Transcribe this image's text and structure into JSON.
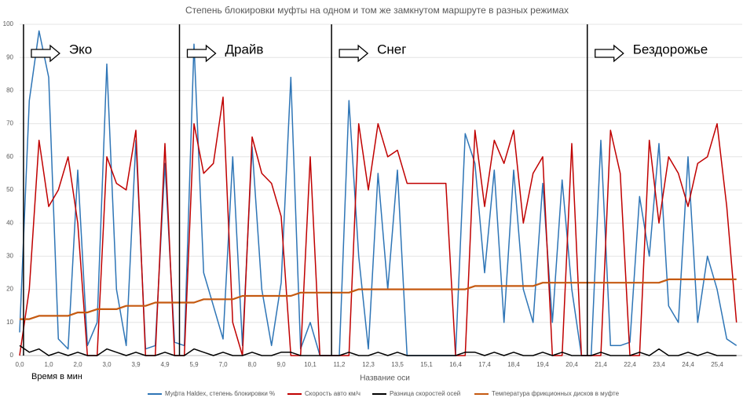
{
  "chart_data": {
    "type": "line",
    "title": "Степень блокировки муфты на одном и том же замкнутом маршруте в разных режимах",
    "x_label": "Название оси",
    "note": "Время в мин",
    "categories": [
      "0,0",
      null,
      null,
      "1,0",
      null,
      null,
      "2,0",
      null,
      null,
      "3,0",
      null,
      null,
      "3,9",
      null,
      null,
      "4,9",
      null,
      null,
      "5,9",
      null,
      null,
      "7,0",
      null,
      null,
      "8,0",
      null,
      null,
      "9,0",
      null,
      null,
      "10,1",
      null,
      null,
      "11,2",
      null,
      null,
      "12,3",
      null,
      null,
      "13,5",
      null,
      null,
      "15,1",
      null,
      null,
      "16,4",
      null,
      null,
      "17,4",
      null,
      null,
      "18,4",
      null,
      null,
      "19,4",
      null,
      null,
      "20,4",
      null,
      null,
      "21,4",
      null,
      null,
      "22,4",
      null,
      null,
      "23,4",
      null,
      null,
      "24,4",
      null,
      null,
      "25,4",
      null,
      null
    ],
    "ylim": [
      0,
      100
    ],
    "yticks": [
      0,
      10,
      20,
      30,
      40,
      50,
      60,
      70,
      80,
      90,
      100
    ],
    "grid": true,
    "regions": [
      {
        "label": "Эко",
        "x": 0.4
      },
      {
        "label": "Драйв",
        "x": 16.5
      },
      {
        "label": "Снег",
        "x": 32.2
      },
      {
        "label": "Бездорожье",
        "x": 58.6
      }
    ],
    "series": [
      {
        "name": "Муфта Haldex,  степень блокировки %",
        "color": "#2e75b6",
        "values": [
          7,
          77,
          98,
          84,
          5,
          2,
          56,
          3,
          10,
          88,
          20,
          3,
          65,
          2,
          3,
          58,
          4,
          3,
          94,
          25,
          15,
          5,
          60,
          3,
          63,
          20,
          3,
          22,
          84,
          2,
          10,
          0,
          0,
          0,
          77,
          30,
          2,
          55,
          20,
          56,
          0,
          0,
          0,
          0,
          0,
          0,
          67,
          58,
          25,
          56,
          10,
          56,
          20,
          10,
          52,
          10,
          53,
          20,
          0,
          0,
          65,
          3,
          3,
          4,
          48,
          30,
          64,
          15,
          10,
          60,
          10,
          30,
          20,
          5,
          3
        ]
      },
      {
        "name": "Скорость авто км/ч",
        "color": "#c00000",
        "values": [
          0,
          20,
          65,
          45,
          50,
          60,
          40,
          0,
          0,
          60,
          52,
          50,
          68,
          0,
          0,
          64,
          0,
          0,
          70,
          55,
          58,
          78,
          10,
          0,
          66,
          55,
          52,
          42,
          0,
          0,
          60,
          0,
          0,
          0,
          0,
          70,
          50,
          70,
          60,
          62,
          52,
          52,
          52,
          52,
          52,
          0,
          0,
          68,
          45,
          65,
          58,
          68,
          40,
          55,
          60,
          0,
          0,
          64,
          0,
          0,
          0,
          68,
          55,
          0,
          0,
          65,
          40,
          60,
          55,
          45,
          58,
          60,
          70,
          45,
          10
        ]
      },
      {
        "name": "Разница скоростей осей",
        "color": "#000000",
        "values": [
          3,
          1,
          2,
          0,
          1,
          0,
          1,
          0,
          0,
          2,
          1,
          0,
          1,
          0,
          0,
          1,
          0,
          0,
          2,
          1,
          0,
          1,
          0,
          0,
          1,
          0,
          0,
          1,
          1,
          0,
          0,
          0,
          0,
          0,
          1,
          0,
          0,
          1,
          0,
          1,
          0,
          0,
          0,
          0,
          0,
          0,
          1,
          1,
          0,
          1,
          0,
          1,
          0,
          0,
          1,
          0,
          1,
          0,
          0,
          0,
          1,
          0,
          0,
          0,
          1,
          0,
          2,
          0,
          0,
          1,
          0,
          1,
          0,
          0,
          0
        ]
      },
      {
        "name": "Температура фрикционных дисков в муфте",
        "color": "#c55a11",
        "values": [
          11,
          11,
          12,
          12,
          12,
          12,
          13,
          13,
          14,
          14,
          14,
          15,
          15,
          15,
          16,
          16,
          16,
          16,
          16,
          17,
          17,
          17,
          17,
          18,
          18,
          18,
          18,
          18,
          18,
          19,
          19,
          19,
          19,
          19,
          19,
          20,
          20,
          20,
          20,
          20,
          20,
          20,
          20,
          20,
          20,
          20,
          20,
          21,
          21,
          21,
          21,
          21,
          21,
          21,
          22,
          22,
          22,
          22,
          22,
          22,
          22,
          22,
          22,
          22,
          22,
          22,
          22,
          23,
          23,
          23,
          23,
          23,
          23,
          23,
          23
        ]
      }
    ]
  }
}
